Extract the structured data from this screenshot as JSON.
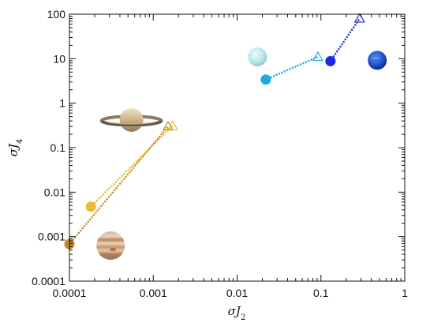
{
  "chart_data": {
    "type": "scatter",
    "title": "",
    "xlabel": "σJ",
    "xlabel_sub": "2",
    "ylabel": "σJ",
    "ylabel_sub": "4",
    "x_scale": "log",
    "y_scale": "log",
    "xlim": [
      0.0001,
      1
    ],
    "ylim": [
      0.0001,
      100
    ],
    "x_ticks": [
      "0.0001",
      "0.001",
      "0.01",
      "0.1",
      "1"
    ],
    "y_ticks": [
      "0.0001",
      "0.001",
      "0.01",
      "0.1",
      "1",
      "10",
      "100"
    ],
    "grid": false,
    "legend": "none",
    "series": [
      {
        "planet": "jupiter",
        "color": "#c08a2a",
        "marker": "circle",
        "x": 0.0001,
        "y": 0.00068
      },
      {
        "planet": "jupiter",
        "color": "#c08a2a",
        "marker": "triangle-open",
        "x": 0.0015,
        "y": 0.3
      },
      {
        "planet": "saturn",
        "color": "#e8bb30",
        "marker": "circle",
        "x": 0.00018,
        "y": 0.0047
      },
      {
        "planet": "saturn",
        "color": "#e8bb30",
        "marker": "triangle-open",
        "x": 0.0017,
        "y": 0.31
      },
      {
        "planet": "uranus",
        "color": "#1ea9e1",
        "marker": "circle",
        "x": 0.022,
        "y": 3.4
      },
      {
        "planet": "uranus",
        "color": "#1ea9e1",
        "marker": "triangle-open",
        "x": 0.092,
        "y": 11
      },
      {
        "planet": "neptune",
        "color": "#1b2ae0",
        "marker": "circle",
        "x": 0.13,
        "y": 8.8
      },
      {
        "planet": "neptune",
        "color": "#1b2ae0",
        "marker": "triangle-open",
        "x": 0.29,
        "y": 80
      }
    ],
    "connections": [
      {
        "planet": "jupiter",
        "color": "#c08a2a",
        "from": [
          0.0001,
          0.00068
        ],
        "to": [
          0.0015,
          0.3
        ]
      },
      {
        "planet": "saturn",
        "color": "#e8bb30",
        "from": [
          0.00018,
          0.0047
        ],
        "to": [
          0.0017,
          0.31
        ]
      },
      {
        "planet": "uranus",
        "color": "#1ea9e1",
        "from": [
          0.022,
          3.4
        ],
        "to": [
          0.092,
          11
        ]
      },
      {
        "planet": "neptune",
        "color": "#1b2ae0",
        "from": [
          0.13,
          8.8
        ],
        "to": [
          0.29,
          80
        ]
      }
    ],
    "planet_images": [
      {
        "planet": "jupiter",
        "icon": "jupiter-icon",
        "x": 0.00031,
        "y": 0.00063
      },
      {
        "planet": "saturn",
        "icon": "saturn-icon",
        "x": 0.00055,
        "y": 0.42
      },
      {
        "planet": "uranus",
        "icon": "uranus-icon",
        "x": 0.0175,
        "y": 11
      },
      {
        "planet": "neptune",
        "icon": "neptune-icon",
        "x": 0.47,
        "y": 9.2
      }
    ]
  }
}
